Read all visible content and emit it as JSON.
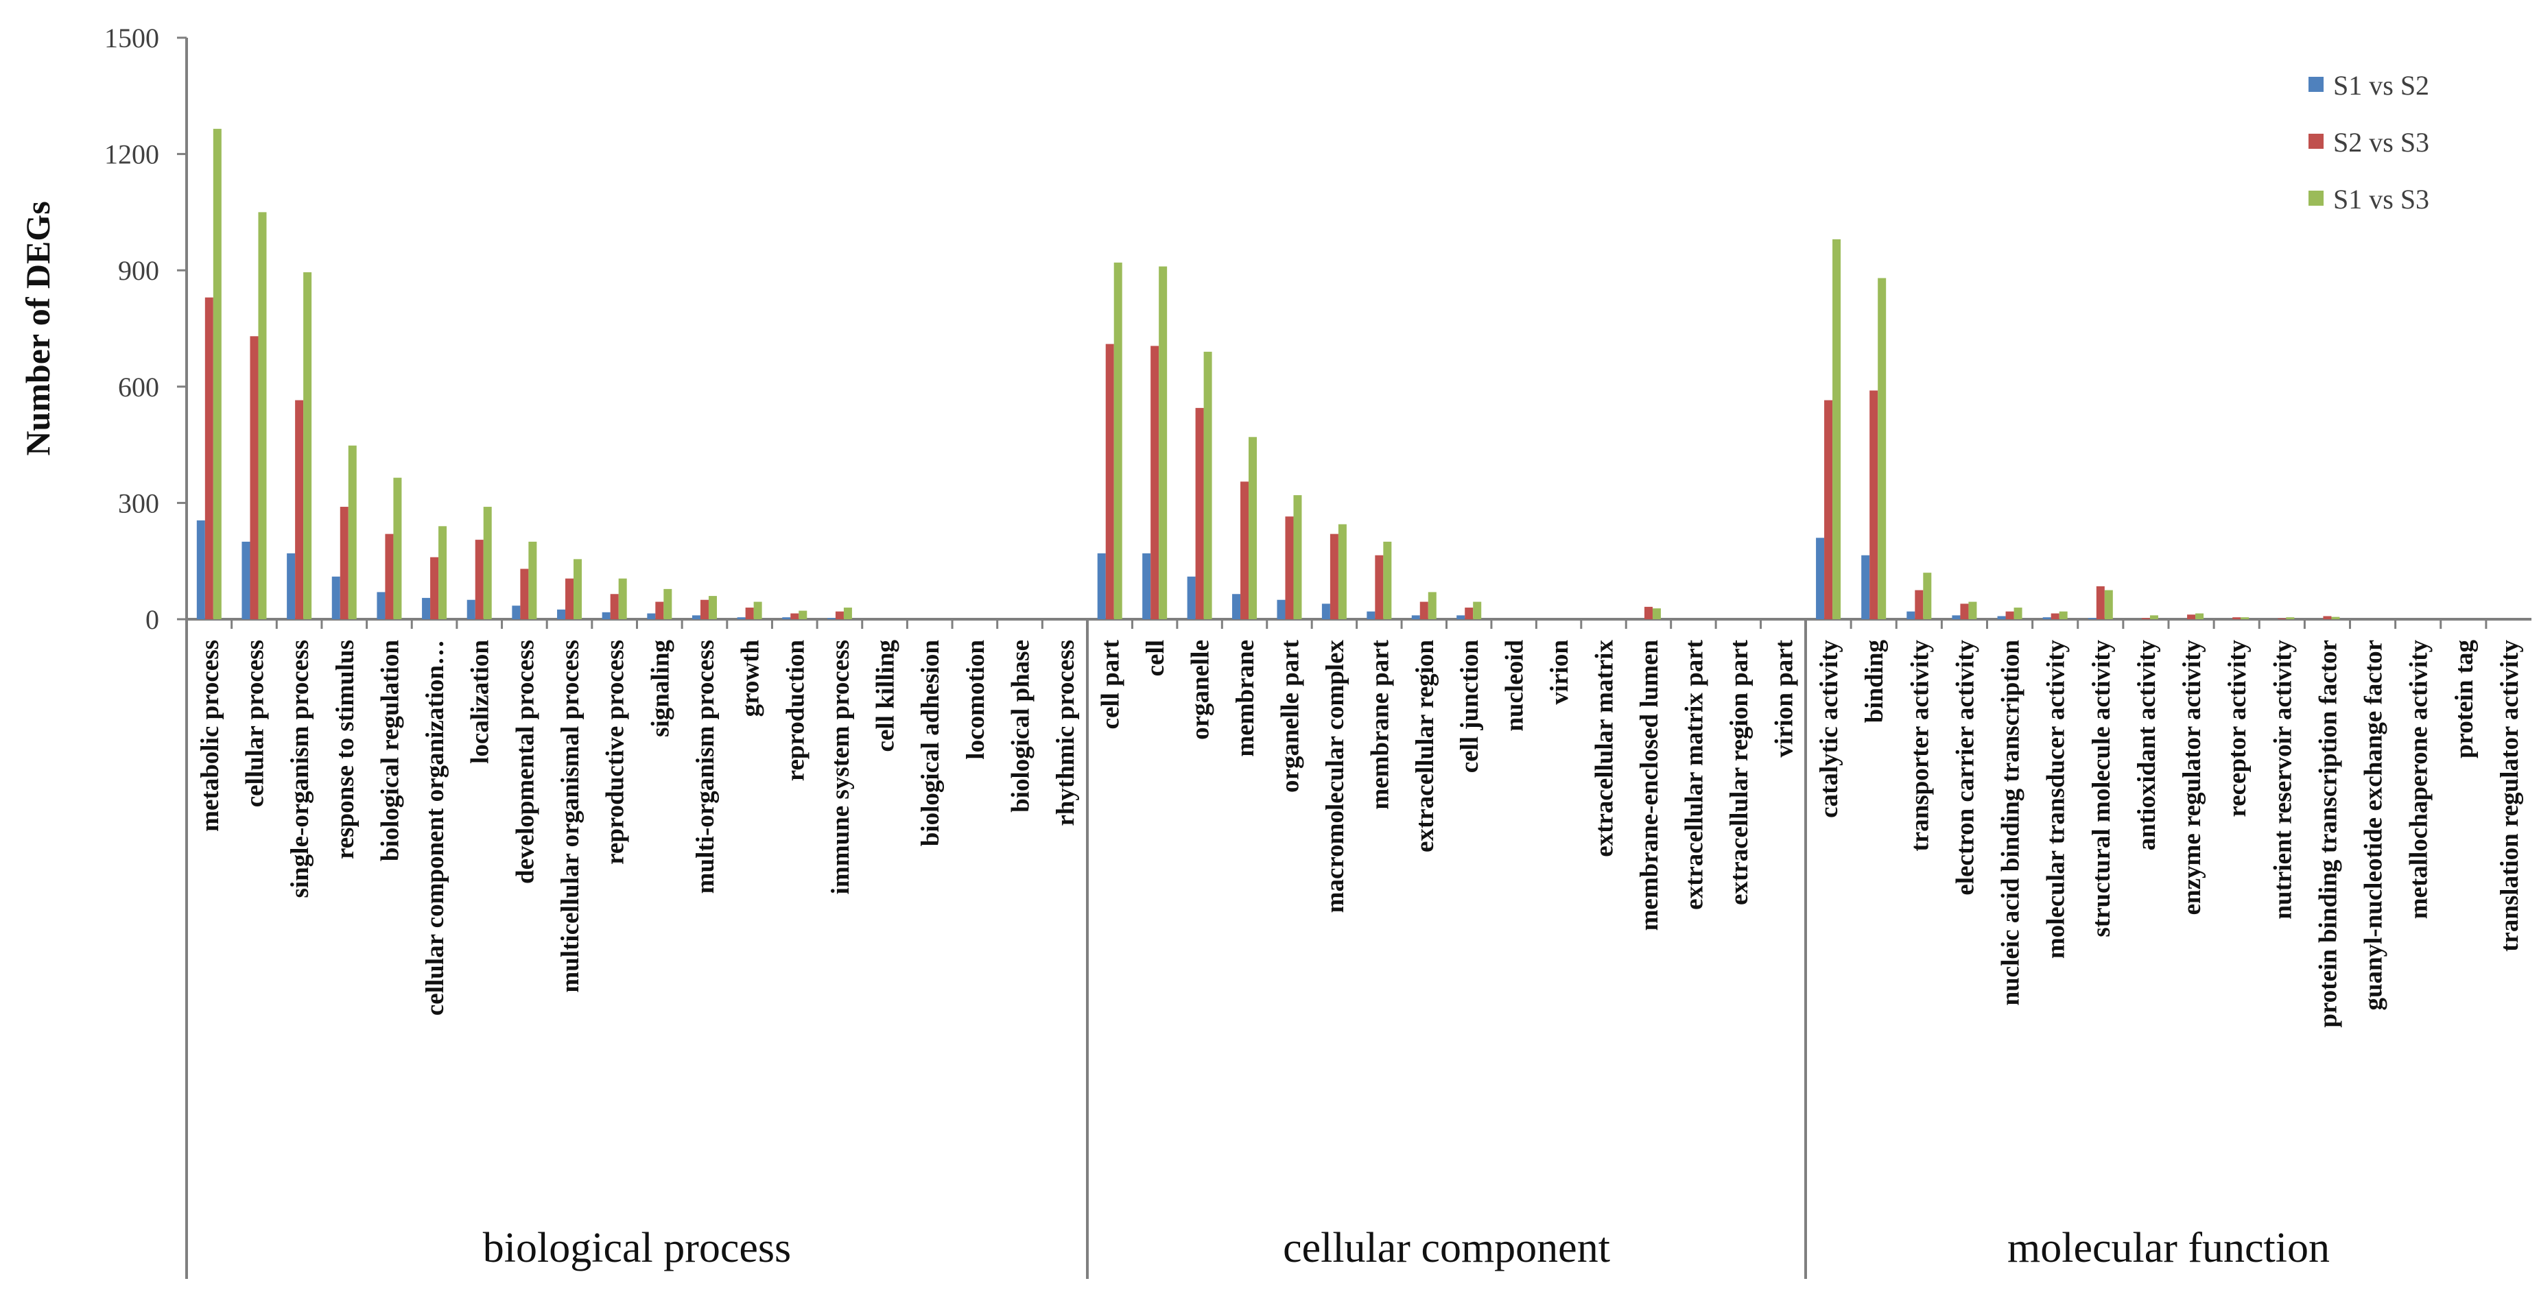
{
  "chart_data": {
    "type": "bar",
    "ylabel": "Number of DEGs",
    "ylim": [
      0,
      1500
    ],
    "yticks": [
      "0",
      "300",
      "600",
      "900",
      "1200",
      "1500"
    ],
    "legend_position": "top-right",
    "series": [
      {
        "name": "S1 vs S2",
        "color": "#4F81BD"
      },
      {
        "name": "S2 vs S3",
        "color": "#C0504D"
      },
      {
        "name": "S1 vs S3",
        "color": "#9BBB59"
      }
    ],
    "groups": [
      {
        "name": "biological process",
        "categories": [
          {
            "label": "metabolic process",
            "values": [
              255,
              830,
              1265
            ]
          },
          {
            "label": "cellular process",
            "values": [
              200,
              730,
              1050
            ]
          },
          {
            "label": "single-organism process",
            "values": [
              170,
              565,
              895
            ]
          },
          {
            "label": "response to stimulus",
            "values": [
              110,
              290,
              448
            ]
          },
          {
            "label": "biological regulation",
            "values": [
              70,
              220,
              365
            ]
          },
          {
            "label": "cellular component organization…",
            "values": [
              55,
              160,
              240
            ]
          },
          {
            "label": "localization",
            "values": [
              50,
              205,
              290
            ]
          },
          {
            "label": "developmental process",
            "values": [
              35,
              130,
              200
            ]
          },
          {
            "label": "multicellular organismal process",
            "values": [
              25,
              105,
              155
            ]
          },
          {
            "label": "reproductive process",
            "values": [
              18,
              65,
              105
            ]
          },
          {
            "label": "signaling",
            "values": [
              15,
              45,
              78
            ]
          },
          {
            "label": "multi-organism process",
            "values": [
              10,
              50,
              60
            ]
          },
          {
            "label": "growth",
            "values": [
              5,
              30,
              45
            ]
          },
          {
            "label": "reproduction",
            "values": [
              5,
              15,
              22
            ]
          },
          {
            "label": "immune system process",
            "values": [
              3,
              20,
              30
            ]
          },
          {
            "label": "cell killing",
            "values": [
              0,
              0,
              0
            ]
          },
          {
            "label": "biological adhesion",
            "values": [
              0,
              0,
              0
            ]
          },
          {
            "label": "locomotion",
            "values": [
              0,
              0,
              0
            ]
          },
          {
            "label": "biological phase",
            "values": [
              0,
              0,
              0
            ]
          },
          {
            "label": "rhythmic process",
            "values": [
              0,
              0,
              0
            ]
          }
        ]
      },
      {
        "name": "cellular component",
        "categories": [
          {
            "label": "cell part",
            "values": [
              170,
              710,
              920
            ]
          },
          {
            "label": "cell",
            "values": [
              170,
              705,
              910
            ]
          },
          {
            "label": "organelle",
            "values": [
              110,
              545,
              690
            ]
          },
          {
            "label": "membrane",
            "values": [
              65,
              355,
              470
            ]
          },
          {
            "label": "organelle part",
            "values": [
              50,
              265,
              320
            ]
          },
          {
            "label": "macromolecular complex",
            "values": [
              40,
              220,
              245
            ]
          },
          {
            "label": "membrane part",
            "values": [
              20,
              165,
              200
            ]
          },
          {
            "label": "extracellular region",
            "values": [
              10,
              45,
              70
            ]
          },
          {
            "label": "cell junction",
            "values": [
              10,
              30,
              45
            ]
          },
          {
            "label": "nucleoid",
            "values": [
              0,
              0,
              0
            ]
          },
          {
            "label": "virion",
            "values": [
              0,
              0,
              0
            ]
          },
          {
            "label": "extracellular matrix",
            "values": [
              0,
              0,
              0
            ]
          },
          {
            "label": "membrane-enclosed lumen",
            "values": [
              0,
              32,
              28
            ]
          },
          {
            "label": "extracellular matrix part",
            "values": [
              0,
              0,
              0
            ]
          },
          {
            "label": "extracellular region part",
            "values": [
              0,
              0,
              0
            ]
          },
          {
            "label": "virion part",
            "values": [
              0,
              0,
              0
            ]
          }
        ]
      },
      {
        "name": "molecular function",
        "categories": [
          {
            "label": "catalytic activity",
            "values": [
              210,
              565,
              980
            ]
          },
          {
            "label": "binding",
            "values": [
              165,
              590,
              880
            ]
          },
          {
            "label": "transporter activity",
            "values": [
              20,
              75,
              120
            ]
          },
          {
            "label": "electron carrier activity",
            "values": [
              10,
              40,
              45
            ]
          },
          {
            "label": "nucleic acid binding transcription",
            "values": [
              8,
              20,
              30
            ]
          },
          {
            "label": "molecular transducer activity",
            "values": [
              5,
              15,
              20
            ]
          },
          {
            "label": "structural molecule activity",
            "values": [
              3,
              85,
              75
            ]
          },
          {
            "label": "antioxidant activity",
            "values": [
              0,
              3,
              10
            ]
          },
          {
            "label": "enzyme regulator activity",
            "values": [
              0,
              12,
              15
            ]
          },
          {
            "label": "receptor activity",
            "values": [
              0,
              5,
              5
            ]
          },
          {
            "label": "nutrient reservoir activity",
            "values": [
              0,
              2,
              5
            ]
          },
          {
            "label": "protein binding transcription factor",
            "values": [
              0,
              8,
              6
            ]
          },
          {
            "label": "guanyl-nucleotide exchange factor",
            "values": [
              0,
              0,
              0
            ]
          },
          {
            "label": "metallochaperone activity",
            "values": [
              0,
              0,
              0
            ]
          },
          {
            "label": "protein tag",
            "values": [
              0,
              0,
              0
            ]
          },
          {
            "label": "translation regulator activity",
            "values": [
              0,
              0,
              0
            ]
          }
        ]
      }
    ]
  }
}
